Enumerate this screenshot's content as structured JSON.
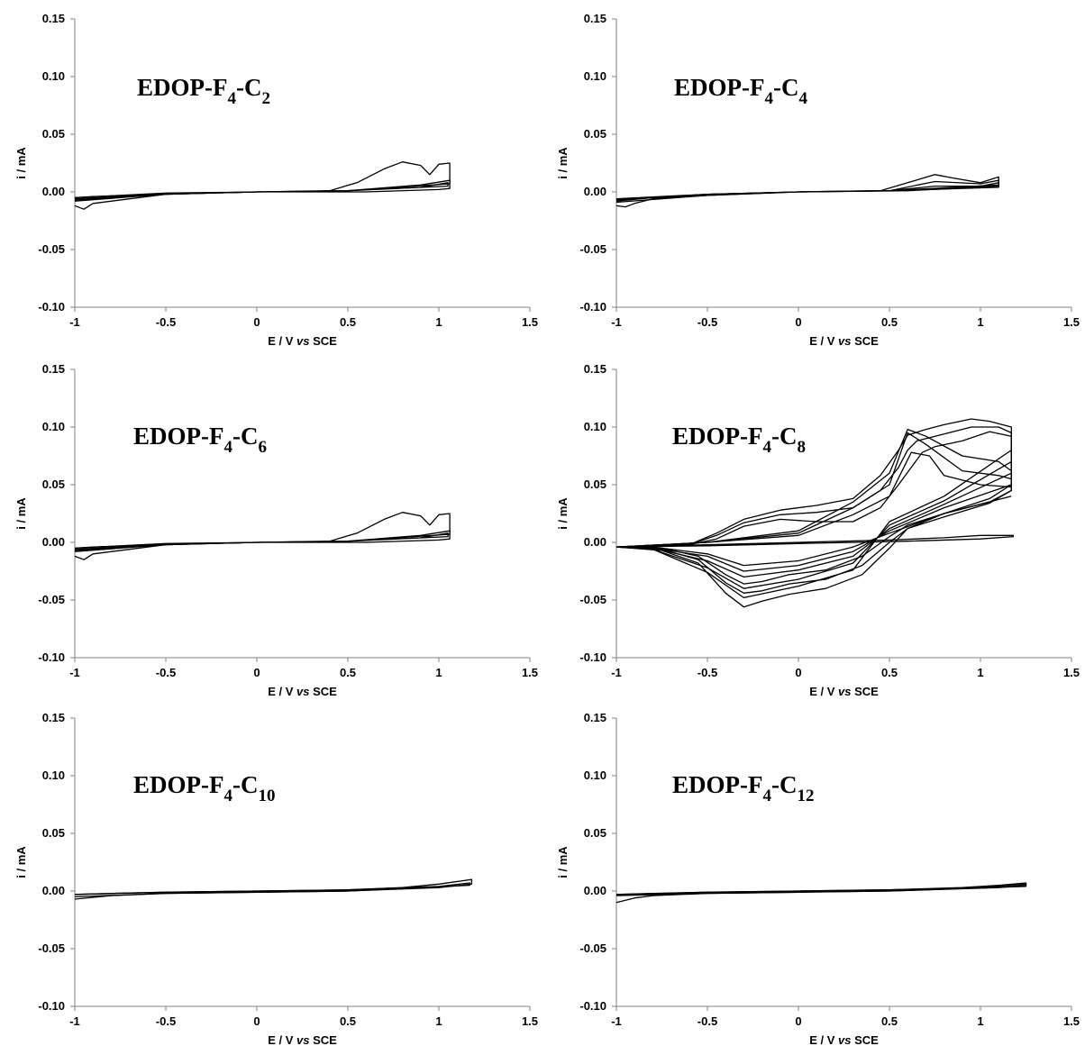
{
  "figure": {
    "axis_color": "#808080",
    "curve_color": "#000000",
    "background": "#ffffff"
  },
  "chart_data": [
    {
      "type": "line",
      "title": "EDOP-F4-C2",
      "title_parts": {
        "main": "EDOP-F",
        "sub1": "4",
        "mid": "-C",
        "sub2": "2"
      },
      "xlabel": "E / V vs SCE",
      "xlabel_parts": {
        "pre": "E / V ",
        "it": "vs",
        "post": " SCE"
      },
      "ylabel": "i / mA",
      "xlim": [
        -1,
        1.5
      ],
      "ylim": [
        -0.1,
        0.15
      ],
      "xticks": [
        "-1",
        "-0.5",
        "0",
        "0.5",
        "1",
        "1.5"
      ],
      "yticks": [
        "-0.10",
        "-0.05",
        "0.00",
        "0.05",
        "0.10",
        "0.15"
      ],
      "series": [
        {
          "x": [
            -1,
            -0.9,
            -0.5,
            0,
            0.4,
            0.55,
            0.7,
            0.8,
            0.9,
            0.95,
            1.0,
            1.06,
            1.06,
            1.0,
            0.6,
            0,
            -0.5,
            -0.9,
            -0.95,
            -1
          ],
          "y": [
            -0.005,
            -0.004,
            -0.002,
            0.0,
            0.001,
            0.008,
            0.02,
            0.026,
            0.023,
            0.015,
            0.024,
            0.025,
            0.003,
            0.002,
            0.0,
            0.0,
            -0.002,
            -0.01,
            -0.015,
            -0.012
          ]
        },
        {
          "x": [
            -1,
            -0.5,
            0,
            0.5,
            0.9,
            1.06,
            1.06,
            0.5,
            0,
            -0.5,
            -1
          ],
          "y": [
            -0.006,
            -0.002,
            0.0,
            0.001,
            0.006,
            0.01,
            0.007,
            0.001,
            0.0,
            -0.002,
            -0.008
          ]
        },
        {
          "x": [
            -1,
            -0.5,
            0,
            0.5,
            0.9,
            1.05,
            1.05,
            0.5,
            0,
            -0.5,
            -1
          ],
          "y": [
            -0.005,
            -0.001,
            0.0,
            0.001,
            0.004,
            0.008,
            0.005,
            0.001,
            0.0,
            -0.002,
            -0.007
          ]
        }
      ]
    },
    {
      "type": "line",
      "title": "EDOP-F4-C4",
      "title_parts": {
        "main": "EDOP-F",
        "sub1": "4",
        "mid": "-C",
        "sub2": "4"
      },
      "xlabel": "E / V vs SCE",
      "xlabel_parts": {
        "pre": "E / V ",
        "it": "vs",
        "post": " SCE"
      },
      "ylabel": "i / mA",
      "xlim": [
        -1,
        1.5
      ],
      "ylim": [
        -0.1,
        0.15
      ],
      "xticks": [
        "-1",
        "-0.5",
        "0",
        "0.5",
        "1",
        "1.5"
      ],
      "yticks": [
        "-0.10",
        "-0.05",
        "0.00",
        "0.05",
        "0.10",
        "0.15"
      ],
      "series": [
        {
          "x": [
            -1,
            -0.8,
            -0.5,
            0,
            0.45,
            0.6,
            0.75,
            0.85,
            1.0,
            1.1,
            1.1,
            0.6,
            0,
            -0.5,
            -0.8,
            -0.9,
            -0.95,
            -1
          ],
          "y": [
            -0.008,
            -0.005,
            -0.002,
            0.0,
            0.001,
            0.008,
            0.015,
            0.012,
            0.008,
            0.013,
            0.005,
            0.001,
            0.0,
            -0.003,
            -0.006,
            -0.01,
            -0.013,
            -0.012
          ]
        },
        {
          "x": [
            -1,
            -0.5,
            0,
            0.5,
            0.75,
            1.0,
            1.1,
            1.1,
            0.5,
            0,
            -0.5,
            -1
          ],
          "y": [
            -0.007,
            -0.002,
            0.0,
            0.001,
            0.009,
            0.007,
            0.01,
            0.006,
            0.001,
            0.0,
            -0.003,
            -0.009
          ]
        },
        {
          "x": [
            -1,
            -0.5,
            0,
            0.5,
            0.75,
            1.0,
            1.1,
            1.1,
            0.5,
            0,
            -0.5,
            -1
          ],
          "y": [
            -0.006,
            -0.002,
            0.0,
            0.001,
            0.005,
            0.005,
            0.008,
            0.004,
            0.001,
            0.0,
            -0.002,
            -0.007
          ]
        }
      ]
    },
    {
      "type": "line",
      "title": "EDOP-F4-C6",
      "title_parts": {
        "main": "EDOP-F",
        "sub1": "4",
        "mid": "-C",
        "sub2": "6"
      },
      "xlabel": "E / V vs SCE",
      "xlabel_parts": {
        "pre": "E / V ",
        "it": "vs",
        "post": " SCE"
      },
      "ylabel": "i / mA",
      "xlim": [
        -1,
        1.5
      ],
      "ylim": [
        -0.1,
        0.15
      ],
      "xticks": [
        "-1",
        "-0.5",
        "0",
        "0.5",
        "1",
        "1.5"
      ],
      "yticks": [
        "-0.10",
        "-0.05",
        "0.00",
        "0.05",
        "0.10",
        "0.15"
      ],
      "series": [
        {
          "x": [
            -1,
            -0.9,
            -0.5,
            0,
            0.4,
            0.55,
            0.7,
            0.8,
            0.9,
            0.95,
            1.0,
            1.06,
            1.06,
            1.0,
            0.6,
            0,
            -0.5,
            -0.9,
            -0.95,
            -1
          ],
          "y": [
            -0.005,
            -0.004,
            -0.002,
            0.0,
            0.001,
            0.008,
            0.02,
            0.026,
            0.023,
            0.015,
            0.024,
            0.025,
            0.003,
            0.002,
            0.0,
            0.0,
            -0.002,
            -0.01,
            -0.015,
            -0.012
          ]
        },
        {
          "x": [
            -1,
            -0.5,
            0,
            0.5,
            0.9,
            1.06,
            1.06,
            0.5,
            0,
            -0.5,
            -1
          ],
          "y": [
            -0.006,
            -0.002,
            0.0,
            0.001,
            0.006,
            0.01,
            0.007,
            0.001,
            0.0,
            -0.002,
            -0.008
          ]
        },
        {
          "x": [
            -1,
            -0.5,
            0,
            0.5,
            0.9,
            1.05,
            1.05,
            0.5,
            0,
            -0.5,
            -1
          ],
          "y": [
            -0.005,
            -0.001,
            0.0,
            0.001,
            0.004,
            0.008,
            0.005,
            0.001,
            0.0,
            -0.002,
            -0.007
          ]
        }
      ]
    },
    {
      "type": "line",
      "title": "EDOP-F4-C8",
      "title_parts": {
        "main": "EDOP-F",
        "sub1": "4",
        "mid": "-C",
        "sub2": "8"
      },
      "xlabel": "E / V vs SCE",
      "xlabel_parts": {
        "pre": "E / V ",
        "it": "vs",
        "post": " SCE"
      },
      "ylabel": "i / mA",
      "xlim": [
        -1,
        1.5
      ],
      "ylim": [
        -0.1,
        0.15
      ],
      "xticks": [
        "-1",
        "-0.5",
        "0",
        "0.5",
        "1",
        "1.5"
      ],
      "yticks": [
        "-0.10",
        "-0.05",
        "0.00",
        "0.05",
        "0.10",
        "0.15"
      ],
      "series": [
        {
          "x": [
            -1,
            -0.5,
            0,
            0.5,
            0.8,
            1.0,
            1.18,
            1.18,
            1.0,
            0.6,
            0,
            -0.5,
            -1
          ],
          "y": [
            -0.004,
            -0.002,
            0.0,
            0.002,
            0.004,
            0.006,
            0.006,
            0.005,
            0.003,
            0.001,
            -0.001,
            -0.003,
            -0.004
          ]
        },
        {
          "x": [
            -1,
            -0.6,
            -0.45,
            -0.3,
            -0.1,
            0.1,
            0.3,
            0.45,
            0.55,
            0.62,
            0.68,
            0.75,
            0.9,
            1.05,
            1.17,
            1.17,
            1.05,
            0.8,
            0.6,
            0.5,
            0.35,
            0.15,
            -0.05,
            -0.2,
            -0.3,
            -0.4,
            -0.55,
            -0.75,
            -1
          ],
          "y": [
            -0.004,
            -0.002,
            0.003,
            0.014,
            0.02,
            0.018,
            0.018,
            0.03,
            0.05,
            0.065,
            0.078,
            0.083,
            0.088,
            0.096,
            0.092,
            0.045,
            0.035,
            0.025,
            0.015,
            0.005,
            -0.012,
            -0.024,
            -0.028,
            -0.034,
            -0.036,
            -0.028,
            -0.012,
            -0.005,
            -0.004
          ]
        },
        {
          "x": [
            -1,
            -0.6,
            -0.45,
            -0.3,
            -0.1,
            0.1,
            0.3,
            0.45,
            0.55,
            0.6,
            0.65,
            0.8,
            0.95,
            1.1,
            1.17,
            1.17,
            1.05,
            0.8,
            0.6,
            0.5,
            0.35,
            0.15,
            -0.05,
            -0.2,
            -0.3,
            -0.4,
            -0.55,
            -0.75,
            -1
          ],
          "y": [
            -0.004,
            -0.002,
            0.006,
            0.017,
            0.024,
            0.026,
            0.03,
            0.045,
            0.065,
            0.08,
            0.088,
            0.094,
            0.1,
            0.1,
            0.095,
            0.045,
            0.034,
            0.022,
            0.012,
            0.0,
            -0.02,
            -0.032,
            -0.036,
            -0.042,
            -0.044,
            -0.035,
            -0.015,
            -0.006,
            -0.004
          ]
        },
        {
          "x": [
            -1,
            -0.6,
            -0.45,
            -0.3,
            -0.1,
            0.1,
            0.3,
            0.45,
            0.55,
            0.6,
            0.7,
            0.8,
            0.95,
            1.05,
            1.17,
            1.17,
            1.05,
            0.8,
            0.6,
            0.5,
            0.35,
            0.15,
            -0.05,
            -0.2,
            -0.3,
            -0.4,
            -0.55,
            -0.75,
            -1
          ],
          "y": [
            -0.004,
            -0.002,
            0.008,
            0.02,
            0.028,
            0.032,
            0.038,
            0.058,
            0.08,
            0.093,
            0.098,
            0.102,
            0.107,
            0.105,
            0.1,
            0.05,
            0.038,
            0.025,
            0.012,
            -0.005,
            -0.028,
            -0.04,
            -0.045,
            -0.051,
            -0.056,
            -0.044,
            -0.018,
            -0.007,
            -0.004
          ]
        },
        {
          "x": [
            -1,
            -0.5,
            0,
            0.3,
            0.5,
            0.6,
            0.7,
            0.9,
            1.1,
            1.17
          ],
          "y": [
            -0.004,
            0.0,
            0.01,
            0.035,
            0.06,
            0.098,
            0.092,
            0.075,
            0.07,
            0.062
          ]
        },
        {
          "x": [
            -1,
            -0.5,
            0,
            0.3,
            0.5,
            0.6,
            0.7,
            0.9,
            1.1,
            1.17
          ],
          "y": [
            -0.004,
            0.0,
            0.008,
            0.03,
            0.05,
            0.095,
            0.085,
            0.062,
            0.058,
            0.055
          ]
        },
        {
          "x": [
            -1,
            -0.5,
            0,
            0.3,
            0.5,
            0.62,
            0.72,
            0.8,
            1.0,
            1.17
          ],
          "y": [
            -0.004,
            0.0,
            0.006,
            0.024,
            0.04,
            0.078,
            0.075,
            0.058,
            0.05,
            0.048
          ]
        },
        {
          "x": [
            1.17,
            0.8,
            0.5,
            0.3,
            0.0,
            -0.3,
            -0.5,
            -0.8,
            -1
          ],
          "y": [
            0.04,
            0.025,
            0.008,
            -0.004,
            -0.016,
            -0.02,
            -0.01,
            -0.004,
            -0.004
          ]
        },
        {
          "x": [
            1.17,
            0.8,
            0.5,
            0.3,
            0.0,
            -0.3,
            -0.5,
            -0.8,
            -1
          ],
          "y": [
            0.05,
            0.03,
            0.01,
            -0.008,
            -0.02,
            -0.025,
            -0.012,
            -0.005,
            -0.004
          ]
        },
        {
          "x": [
            1.17,
            0.8,
            0.5,
            0.3,
            0.0,
            -0.3,
            -0.5,
            -0.8,
            -1
          ],
          "y": [
            0.06,
            0.033,
            0.012,
            -0.012,
            -0.024,
            -0.03,
            -0.016,
            -0.005,
            -0.004
          ]
        },
        {
          "x": [
            1.17,
            0.8,
            0.5,
            0.3,
            0.0,
            -0.3,
            -0.5,
            -0.8,
            -1
          ],
          "y": [
            0.07,
            0.036,
            0.015,
            -0.018,
            -0.032,
            -0.04,
            -0.022,
            -0.006,
            -0.004
          ]
        },
        {
          "x": [
            1.17,
            0.8,
            0.5,
            0.3,
            0.0,
            -0.3,
            -0.5,
            -0.8,
            -1
          ],
          "y": [
            0.08,
            0.04,
            0.018,
            -0.024,
            -0.038,
            -0.048,
            -0.026,
            -0.006,
            -0.004
          ]
        }
      ]
    },
    {
      "type": "line",
      "title": "EDOP-F4-C10",
      "title_parts": {
        "main": "EDOP-F",
        "sub1": "4",
        "mid": "-C",
        "sub2": "10"
      },
      "xlabel": "E / V vs SCE",
      "xlabel_parts": {
        "pre": "E / V ",
        "it": "vs",
        "post": " SCE"
      },
      "ylabel": "i / mA",
      "xlim": [
        -1,
        1.5
      ],
      "ylim": [
        -0.1,
        0.15
      ],
      "xticks": [
        "-1",
        "-0.5",
        "0",
        "0.5",
        "1",
        "1.5"
      ],
      "yticks": [
        "-0.10",
        "-0.05",
        "0.00",
        "0.05",
        "0.10",
        "0.15"
      ],
      "series": [
        {
          "x": [
            -1,
            -0.8,
            -0.5,
            0,
            0.5,
            0.8,
            1.0,
            1.18,
            1.18,
            1.0,
            0.5,
            0,
            -0.5,
            -0.8,
            -1
          ],
          "y": [
            -0.003,
            -0.002,
            -0.001,
            0.0,
            0.001,
            0.003,
            0.006,
            0.01,
            0.006,
            0.003,
            0.0,
            -0.001,
            -0.002,
            -0.004,
            -0.007
          ]
        },
        {
          "x": [
            -1,
            -0.5,
            0,
            0.5,
            1.0,
            1.17,
            1.17,
            0.5,
            0,
            -0.5,
            -1
          ],
          "y": [
            -0.003,
            -0.001,
            0.0,
            0.001,
            0.004,
            0.007,
            0.005,
            0.0,
            -0.001,
            -0.002,
            -0.005
          ]
        }
      ]
    },
    {
      "type": "line",
      "title": "EDOP-F4-C12",
      "title_parts": {
        "main": "EDOP-F",
        "sub1": "4",
        "mid": "-C",
        "sub2": "12"
      },
      "xlabel": "E / V vs SCE",
      "xlabel_parts": {
        "pre": "E / V ",
        "it": "vs",
        "post": " SCE"
      },
      "ylabel": "i / mA",
      "xlim": [
        -1,
        1.5
      ],
      "ylim": [
        -0.1,
        0.15
      ],
      "xticks": [
        "-1",
        "-0.5",
        "0",
        "0.5",
        "1",
        "1.5"
      ],
      "yticks": [
        "-0.10",
        "-0.05",
        "0.00",
        "0.05",
        "0.10",
        "0.15"
      ],
      "series": [
        {
          "x": [
            -1,
            -0.8,
            -0.5,
            0,
            0.5,
            0.9,
            1.1,
            1.25,
            1.25,
            1.1,
            0.5,
            0,
            -0.5,
            -0.8,
            -0.9,
            -1
          ],
          "y": [
            -0.003,
            -0.002,
            -0.001,
            0.0,
            0.001,
            0.003,
            0.005,
            0.007,
            0.005,
            0.003,
            0.0,
            -0.001,
            -0.002,
            -0.004,
            -0.006,
            -0.01
          ]
        },
        {
          "x": [
            -1,
            -0.5,
            0,
            0.5,
            1.0,
            1.25,
            1.25,
            0.5,
            0,
            -0.5,
            -1
          ],
          "y": [
            -0.003,
            -0.001,
            0.0,
            0.001,
            0.003,
            0.006,
            0.004,
            0.0,
            -0.001,
            -0.002,
            -0.004
          ]
        }
      ]
    }
  ]
}
